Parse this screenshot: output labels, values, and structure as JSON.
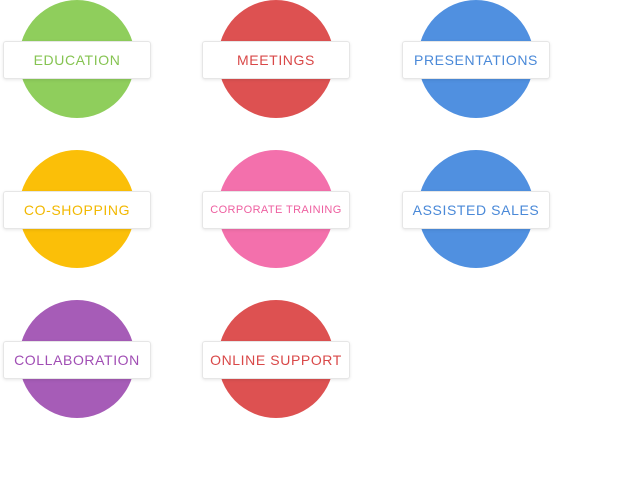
{
  "tiles": {
    "education": {
      "label": "EDUCATION",
      "color": "#8fce5c"
    },
    "meetings": {
      "label": "MEETINGS",
      "color": "#dd5151"
    },
    "presentations": {
      "label": "PRESENTATIONS",
      "color": "#5090e0"
    },
    "co_shopping": {
      "label": "CO-SHOPPING",
      "color": "#fbbf08"
    },
    "corporate_training": {
      "label": "CORPORATE TRAINING",
      "color": "#f370ac"
    },
    "assisted_sales": {
      "label": "ASSISTED SALES",
      "color": "#5090e0"
    },
    "collaboration": {
      "label": "COLLABORATION",
      "color": "#a65cb7"
    },
    "online_support": {
      "label": "ONLINE SUPPORT",
      "color": "#dd5151"
    }
  }
}
